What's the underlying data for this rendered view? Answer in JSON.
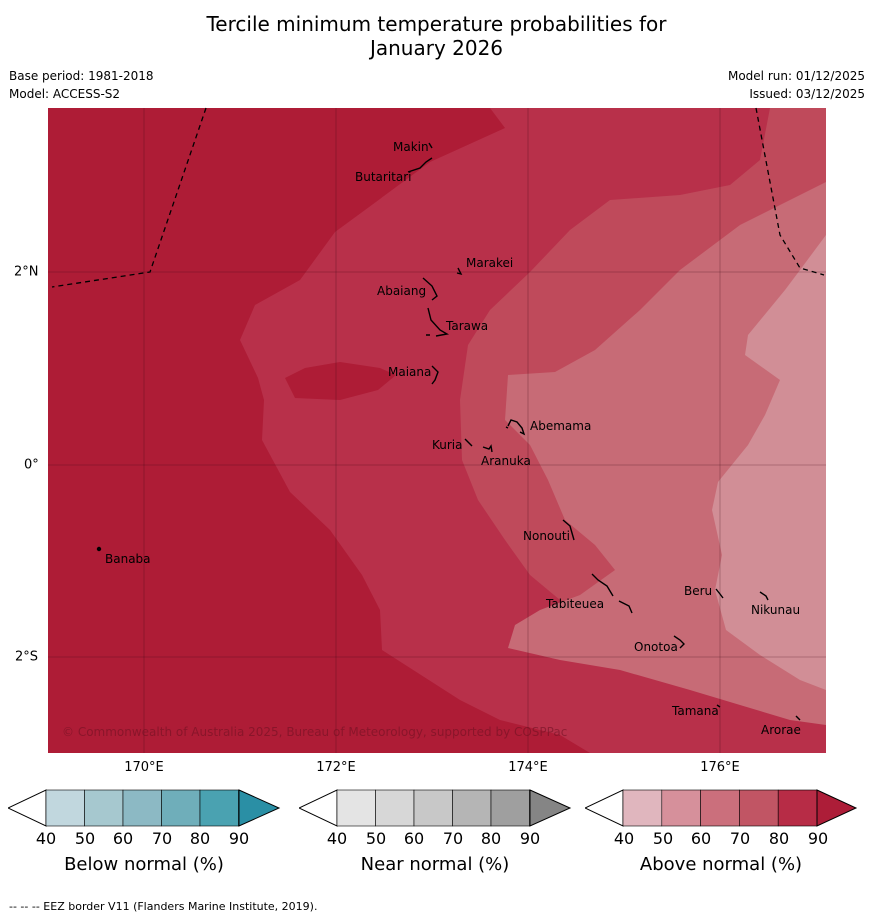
{
  "title_line1": "Tercile minimum temperature probabilities for",
  "title_line2": "January 2026",
  "meta": {
    "base_period": "Base period: 1981-2018",
    "model": "Model: ACCESS-S2",
    "model_run": "Model run: 01/12/2025",
    "issued": "Issued: 03/12/2025"
  },
  "axes": {
    "lon_labels": [
      "170°E",
      "172°E",
      "174°E",
      "176°E"
    ],
    "lat_labels": [
      "2°N",
      "0°",
      "2°S"
    ]
  },
  "islands": [
    {
      "name": "Makin"
    },
    {
      "name": "Butaritari"
    },
    {
      "name": "Marakei"
    },
    {
      "name": "Abaiang"
    },
    {
      "name": "Tarawa"
    },
    {
      "name": "Maiana"
    },
    {
      "name": "Abemama"
    },
    {
      "name": "Kuria"
    },
    {
      "name": "Aranuka"
    },
    {
      "name": "Banaba"
    },
    {
      "name": "Nonouti"
    },
    {
      "name": "Tabiteuea"
    },
    {
      "name": "Beru"
    },
    {
      "name": "Nikunau"
    },
    {
      "name": "Onotoa"
    },
    {
      "name": "Tamana"
    },
    {
      "name": "Arorae"
    }
  ],
  "copyright": "© Commonwealth of Australia 2025, Bureau of Meteorology, supported by COSPPac",
  "colorbars": [
    {
      "title": "Below normal (%)",
      "ticks": [
        "40",
        "50",
        "60",
        "70",
        "80",
        "90"
      ],
      "colors": [
        "#c1d7de",
        "#a6c8cf",
        "#8cb9c4",
        "#6faeba",
        "#4aa2b1",
        "#2a8fa5"
      ]
    },
    {
      "title": "Near normal (%)",
      "ticks": [
        "40",
        "50",
        "60",
        "70",
        "80",
        "90"
      ],
      "colors": [
        "#e4e4e4",
        "#d7d7d7",
        "#c8c8c8",
        "#b5b5b5",
        "#9f9f9f",
        "#858585"
      ]
    },
    {
      "title": "Above normal (%)",
      "ticks": [
        "40",
        "50",
        "60",
        "70",
        "80",
        "90"
      ],
      "colors": [
        "#e0b6be",
        "#d6909b",
        "#cb6f7c",
        "#c15564",
        "#b72c46",
        "#ad1d38"
      ]
    }
  ],
  "map_colors": {
    "deep": "#ae1c36",
    "band80": "#b8304a",
    "band70": "#bf4a5b",
    "band60": "#c76b76",
    "band50": "#d18e96"
  },
  "footer": "--  --  -- EEZ border V11 (Flanders Marine Institute, 2019)."
}
